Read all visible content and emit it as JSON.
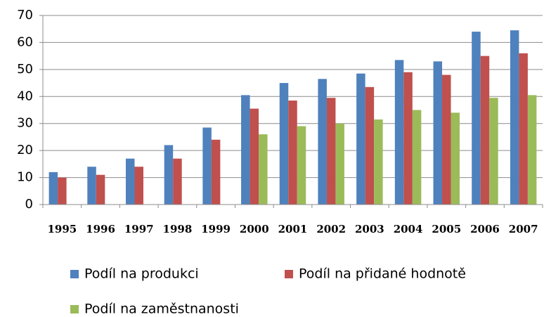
{
  "chart_data": {
    "type": "bar",
    "categories": [
      "1995",
      "1996",
      "1997",
      "1998",
      "1999",
      "2000",
      "2001",
      "2002",
      "2003",
      "2004",
      "2005",
      "2006",
      "2007"
    ],
    "series": [
      {
        "name": "Podíl na produkci",
        "color": "#4f81bd",
        "values": [
          12,
          14,
          17,
          22,
          28.5,
          40.5,
          45,
          46.5,
          48.5,
          53.5,
          53,
          64,
          64.5
        ]
      },
      {
        "name": "Podíl na přidané hodnotě",
        "color": "#c0504d",
        "values": [
          10,
          11,
          14,
          17,
          24,
          35.5,
          38.5,
          39.5,
          43.5,
          49,
          48,
          55,
          56
        ]
      },
      {
        "name": "Podíl na zaměstnanosti",
        "color": "#9bbb59",
        "values": [
          null,
          null,
          null,
          null,
          null,
          26,
          29,
          30,
          31.5,
          35,
          34,
          39.5,
          40.5
        ]
      }
    ],
    "ylim": [
      0,
      70
    ],
    "yticks": [
      0,
      10,
      20,
      30,
      40,
      50,
      60,
      70
    ],
    "grid": true,
    "legend": "bottom"
  }
}
